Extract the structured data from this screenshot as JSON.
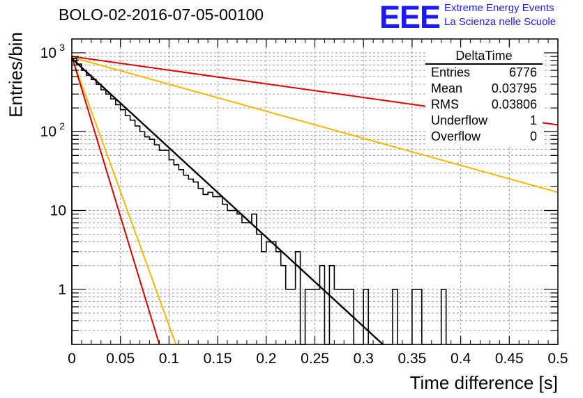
{
  "header": {
    "run_title": "BOLO-02-2016-07-05-00100",
    "logo_text": "EEE",
    "logo_line1": "Extreme Energy Events",
    "logo_line2": "La Scienza nelle Scuole"
  },
  "stats_box": {
    "title": "DeltaTime",
    "rows": [
      {
        "label": "Entries",
        "value": "6776"
      },
      {
        "label": "Mean",
        "value": "0.03795"
      },
      {
        "label": "RMS",
        "value": "0.03806"
      },
      {
        "label": "Underflow",
        "value": "1"
      },
      {
        "label": "Overflow",
        "value": "0"
      }
    ]
  },
  "colors": {
    "histogram": "#000000",
    "fit": "#000000",
    "red_lines": "#dd0000",
    "orange_lines": "#f5b800",
    "logo": "#1a1aff",
    "grid": "#9a9a9a"
  },
  "chart_data": {
    "type": "histogram",
    "title": "",
    "xlabel": "Time difference [s]",
    "ylabel": "Entries/bin",
    "xlim": [
      0,
      0.5
    ],
    "ylim": [
      0.2,
      1500
    ],
    "yscale": "log",
    "grid": true,
    "x_ticks": [
      "0",
      "0.05",
      "0.1",
      "0.15",
      "0.2",
      "0.25",
      "0.3",
      "0.35",
      "0.4",
      "0.45",
      "0.5"
    ],
    "y_ticks": [
      "1",
      "10",
      "10^2",
      "10^3"
    ],
    "bin_width": 0.005,
    "bin_contents": [
      850,
      720,
      600,
      520,
      460,
      400,
      340,
      300,
      260,
      220,
      190,
      160,
      140,
      118,
      100,
      86,
      80,
      68,
      58,
      58,
      44,
      38,
      33,
      28,
      25,
      23,
      19,
      16,
      17,
      15,
      15,
      12,
      10,
      10,
      9,
      7,
      7,
      9,
      5,
      3,
      4,
      4,
      3,
      2,
      1,
      1,
      3,
      0.2,
      1,
      1,
      1,
      2,
      0,
      2,
      1,
      1,
      1,
      1,
      0,
      0,
      1,
      0,
      0,
      0,
      0,
      0,
      1,
      0,
      0,
      0,
      1,
      1,
      0,
      0,
      0,
      0,
      1,
      0,
      0,
      0,
      0,
      0,
      0,
      0,
      0,
      0,
      0,
      0,
      0,
      0,
      0,
      0,
      0,
      0,
      0,
      0,
      0,
      0,
      0,
      0
    ],
    "fit_line": {
      "x": [
        0,
        0.32
      ],
      "y": [
        850,
        0.2
      ]
    },
    "reference_lines": [
      {
        "color": "red",
        "x": [
          0,
          0.5
        ],
        "y": [
          900,
          122
        ]
      },
      {
        "color": "orange",
        "x": [
          0,
          0.5
        ],
        "y": [
          880,
          17
        ]
      },
      {
        "color": "orange",
        "x": [
          0,
          0.107
        ],
        "y": [
          880,
          0.2
        ]
      },
      {
        "color": "red",
        "x": [
          0,
          0.09
        ],
        "y": [
          900,
          0.2
        ]
      }
    ]
  }
}
